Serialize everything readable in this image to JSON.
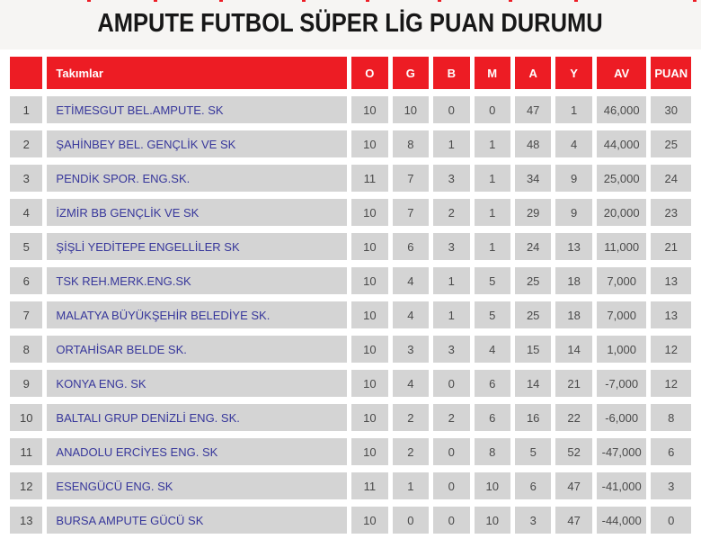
{
  "page": {
    "title": "AMPUTE FUTBOL SÜPER LİG PUAN DURUMU"
  },
  "colors": {
    "accent_red": "#ed1c24",
    "row_background": "#d4d4d4",
    "header_text": "#ffffff",
    "team_text": "#37379b",
    "number_text": "#4a4a4a",
    "title_text": "#171717",
    "title_band_background": "#f6f5f3"
  },
  "table": {
    "rank_header": "",
    "team_header": "Takımlar",
    "col_headers": [
      "O",
      "G",
      "B",
      "M",
      "A",
      "Y",
      "AV",
      "PUAN"
    ],
    "rows": [
      [
        "1",
        "ETİMESGUT BEL.AMPUTE. SK",
        "10",
        "10",
        "0",
        "0",
        "47",
        "1",
        "46,000",
        "30"
      ],
      [
        "2",
        "ŞAHİNBEY BEL. GENÇLİK VE SK",
        "10",
        "8",
        "1",
        "1",
        "48",
        "4",
        "44,000",
        "25"
      ],
      [
        "3",
        "PENDİK SPOR. ENG.SK.",
        "11",
        "7",
        "3",
        "1",
        "34",
        "9",
        "25,000",
        "24"
      ],
      [
        "4",
        "İZMİR BB GENÇLİK VE SK",
        "10",
        "7",
        "2",
        "1",
        "29",
        "9",
        "20,000",
        "23"
      ],
      [
        "5",
        "ŞİŞLİ YEDİTEPE ENGELLİLER SK",
        "10",
        "6",
        "3",
        "1",
        "24",
        "13",
        "11,000",
        "21"
      ],
      [
        "6",
        "TSK REH.MERK.ENG.SK",
        "10",
        "4",
        "1",
        "5",
        "25",
        "18",
        "7,000",
        "13"
      ],
      [
        "7",
        "MALATYA BÜYÜKŞEHİR BELEDİYE SK.",
        "10",
        "4",
        "1",
        "5",
        "25",
        "18",
        "7,000",
        "13"
      ],
      [
        "8",
        "ORTAHİSAR BELDE SK.",
        "10",
        "3",
        "3",
        "4",
        "15",
        "14",
        "1,000",
        "12"
      ],
      [
        "9",
        "KONYA ENG. SK",
        "10",
        "4",
        "0",
        "6",
        "14",
        "21",
        "-7,000",
        "12"
      ],
      [
        "10",
        "BALTALI GRUP DENİZLİ ENG. SK.",
        "10",
        "2",
        "2",
        "6",
        "16",
        "22",
        "-6,000",
        "8"
      ],
      [
        "11",
        "ANADOLU ERCİYES ENG. SK",
        "10",
        "2",
        "0",
        "8",
        "5",
        "52",
        "-47,000",
        "6"
      ],
      [
        "12",
        "ESENGÜCÜ ENG. SK",
        "11",
        "1",
        "0",
        "10",
        "6",
        "47",
        "-41,000",
        "3"
      ],
      [
        "13",
        "BURSA AMPUTE GÜCÜ SK",
        "10",
        "0",
        "0",
        "10",
        "3",
        "47",
        "-44,000",
        "0"
      ]
    ]
  }
}
